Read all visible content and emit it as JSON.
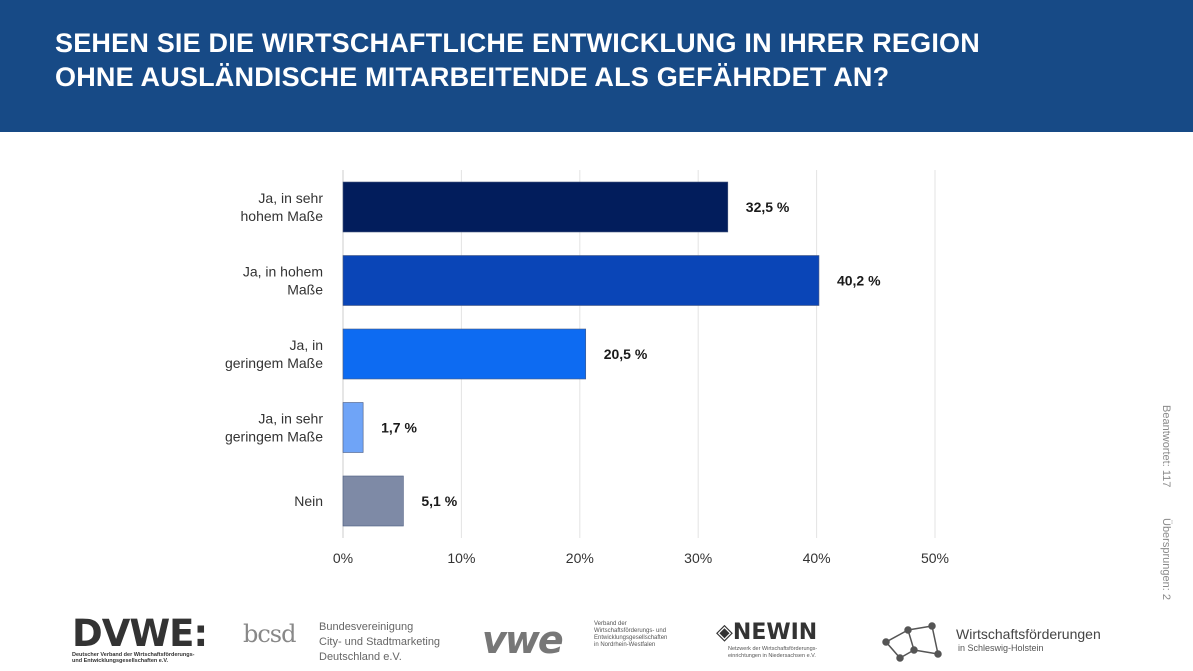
{
  "header": {
    "title_line1": "SEHEN SIE DIE WIRTSCHAFTLICHE ENTWICKLUNG IN IHRER REGION",
    "title_line2": "OHNE AUSLÄNDISCHE MITARBEITENDE ALS GEFÄHRDET AN?",
    "background": "#174a86"
  },
  "chart_data": {
    "type": "bar",
    "orientation": "horizontal",
    "categories": [
      [
        "Ja, in sehr",
        "hohem Maße"
      ],
      [
        "Ja, in hohem",
        "Maße"
      ],
      [
        "Ja, in",
        "geringem Maße"
      ],
      [
        "Ja, in sehr",
        "geringem Maße"
      ],
      [
        "Nein"
      ]
    ],
    "values": [
      32.5,
      40.2,
      20.5,
      1.7,
      5.1
    ],
    "value_labels": [
      "32,5 %",
      "40,2 %",
      "20,5 %",
      "1,7 %",
      "5,1 %"
    ],
    "colors": [
      "#021d5c",
      "#0a45b7",
      "#0d6bf2",
      "#6fa4f7",
      "#7e8aa6"
    ],
    "xlim": [
      0,
      50
    ],
    "ticks": [
      0,
      10,
      20,
      30,
      40,
      50
    ],
    "tick_labels": [
      "0%",
      "10%",
      "20%",
      "30%",
      "40%",
      "50%"
    ],
    "grid": true
  },
  "side_note": {
    "answered": "Beantwortet: 117",
    "skipped": "Übersprungen: 2"
  },
  "logos": {
    "dvwe": {
      "mark": "DVWE:",
      "line1": "Deutscher Verband der Wirtschaftsförderungs-",
      "line2": "und Entwicklungsgesellschaften e.V."
    },
    "bcsd": {
      "mark": "bcsd",
      "line1": "Bundesvereinigung",
      "line2": "City- und Stadtmarketing",
      "line3": "Deutschland e.V."
    },
    "vwe": {
      "mark": "vwe",
      "line1": "Verband der",
      "line2": "Wirtschaftsförderungs- und",
      "line3": "Entwicklungsgesellschaften",
      "line4": "in Nordrhein-Westfalen"
    },
    "newin": {
      "mark": "◈NEWIN",
      "line1": "Netzwerk der Wirtschaftsförderungs-",
      "line2": "einrichtungen in Niedersachsen e.V."
    },
    "wsh": {
      "line1": "Wirtschaftsförderungen",
      "line2": "in Schleswig-Holstein"
    }
  }
}
